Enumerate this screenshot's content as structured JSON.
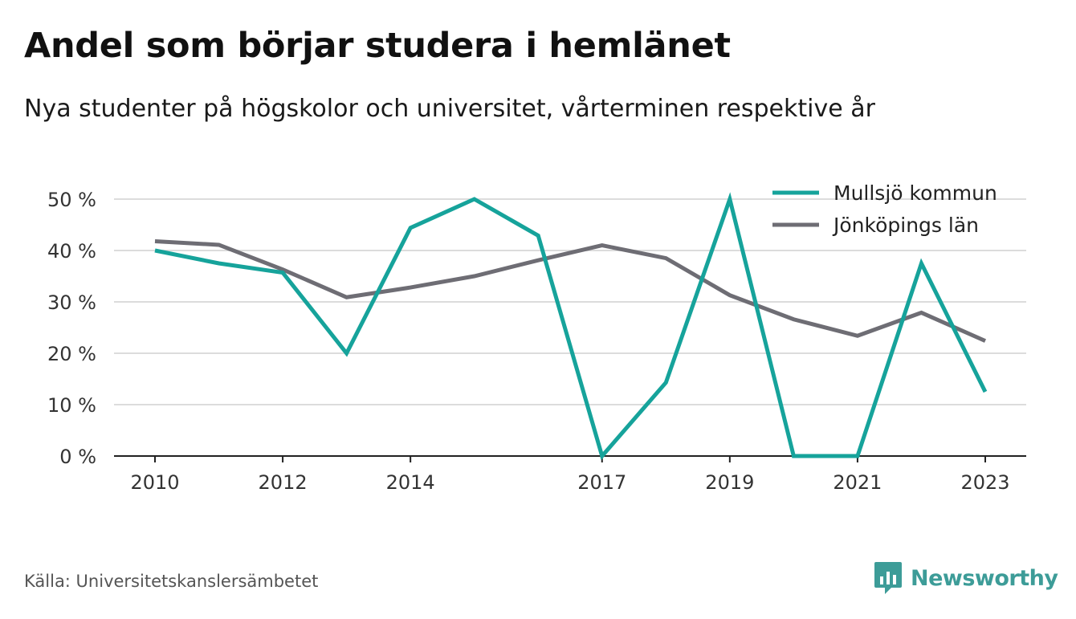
{
  "title": "Andel som börjar studera i hemlänet",
  "subtitle": "Nya studenter på högskolor och universitet, vårterminen respektive år",
  "source": "Källa: Universitetskanslersämbetet",
  "brand": {
    "name": "Newsworthy",
    "icon": "newsworthy-logo-icon",
    "color": "#3d9c98"
  },
  "chart_data": {
    "type": "line",
    "x": [
      2010,
      2011,
      2012,
      2013,
      2014,
      2015,
      2016,
      2017,
      2018,
      2019,
      2020,
      2021,
      2022,
      2023
    ],
    "x_tick_labels": [
      "2010",
      "2012",
      "2014",
      "2017",
      "2019",
      "2021",
      "2023"
    ],
    "y_tick_labels": [
      "0 %",
      "10 %",
      "20 %",
      "30 %",
      "40 %",
      "50 %"
    ],
    "y_ticks": [
      0,
      10,
      20,
      30,
      40,
      50
    ],
    "ylim": [
      0,
      50
    ],
    "xlim": [
      2010,
      2023
    ],
    "grid": true,
    "legend_position": "top-right",
    "series": [
      {
        "name": "Mullsjö kommun",
        "color": "#16a39b",
        "values": [
          40.0,
          37.5,
          35.7,
          20.0,
          44.4,
          50.0,
          42.9,
          0.0,
          14.3,
          50.0,
          0.0,
          0.0,
          37.5,
          12.5
        ]
      },
      {
        "name": "Jönköpings län",
        "color": "#6e6d74",
        "values": [
          41.8,
          41.1,
          36.3,
          30.9,
          32.8,
          35.0,
          38.1,
          41.0,
          38.5,
          31.3,
          26.6,
          23.4,
          27.9,
          22.4
        ]
      }
    ]
  }
}
